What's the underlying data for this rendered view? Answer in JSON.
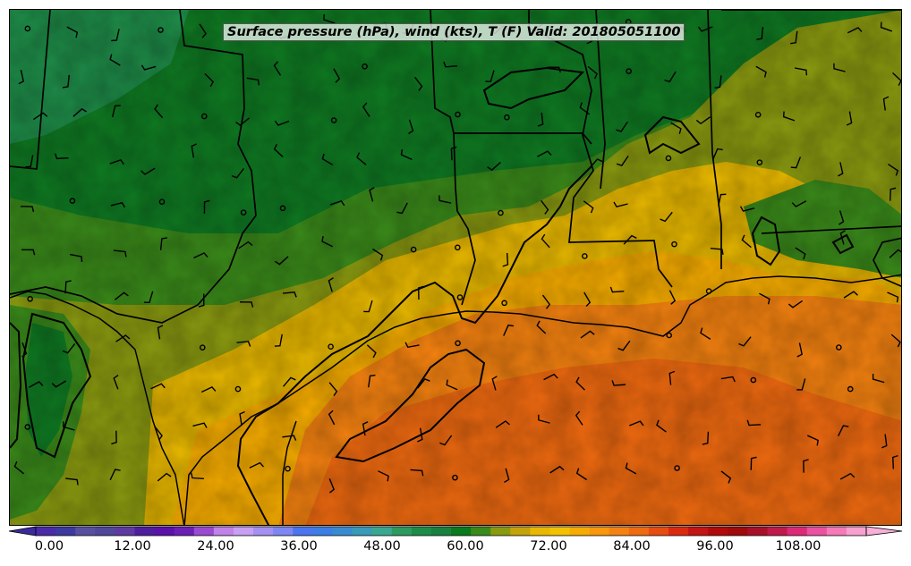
{
  "map": {
    "title": "Surface pressure (hPa), wind (kts), T (F) Valid: 201805051100",
    "region": "Southern US and Gulf of Mexico",
    "fields": [
      "surface pressure (contours)",
      "wind barbs",
      "temperature (filled)"
    ]
  },
  "colorbar": {
    "units": "F",
    "min": 0,
    "max": 120,
    "ticks": [
      "0.00",
      "12.00",
      "24.00",
      "36.00",
      "48.00",
      "60.00",
      "72.00",
      "84.00",
      "96.00",
      "108.00"
    ],
    "colors": [
      "#4a2aa8",
      "#3c3a9e",
      "#56509e",
      "#4e479a",
      "#5e3aa0",
      "#4f1e9e",
      "#5a12a8",
      "#6a20b4",
      "#9a4ad0",
      "#bf82e6",
      "#c7a0f2",
      "#a390f0",
      "#7e86f2",
      "#4b74f0",
      "#3c7ee6",
      "#3a8ad0",
      "#3a9ab8",
      "#3aa890",
      "#2e9a60",
      "#1e8c48",
      "#1a8040",
      "#0a7a1e",
      "#3a8a1a",
      "#8a9a10",
      "#c4a20a",
      "#e8b800",
      "#f2c200",
      "#f6ac00",
      "#f8980a",
      "#f58210",
      "#f06a10",
      "#e84c10",
      "#dc2a10",
      "#c41414",
      "#b00a0a",
      "#a00a0a",
      "#a8102a",
      "#c01a4a",
      "#dc2a78",
      "#ec50a0",
      "#f47ab8",
      "#f8a0d0"
    ],
    "under_color": "#3a2a9c",
    "over_color": "#f8b0d8"
  }
}
